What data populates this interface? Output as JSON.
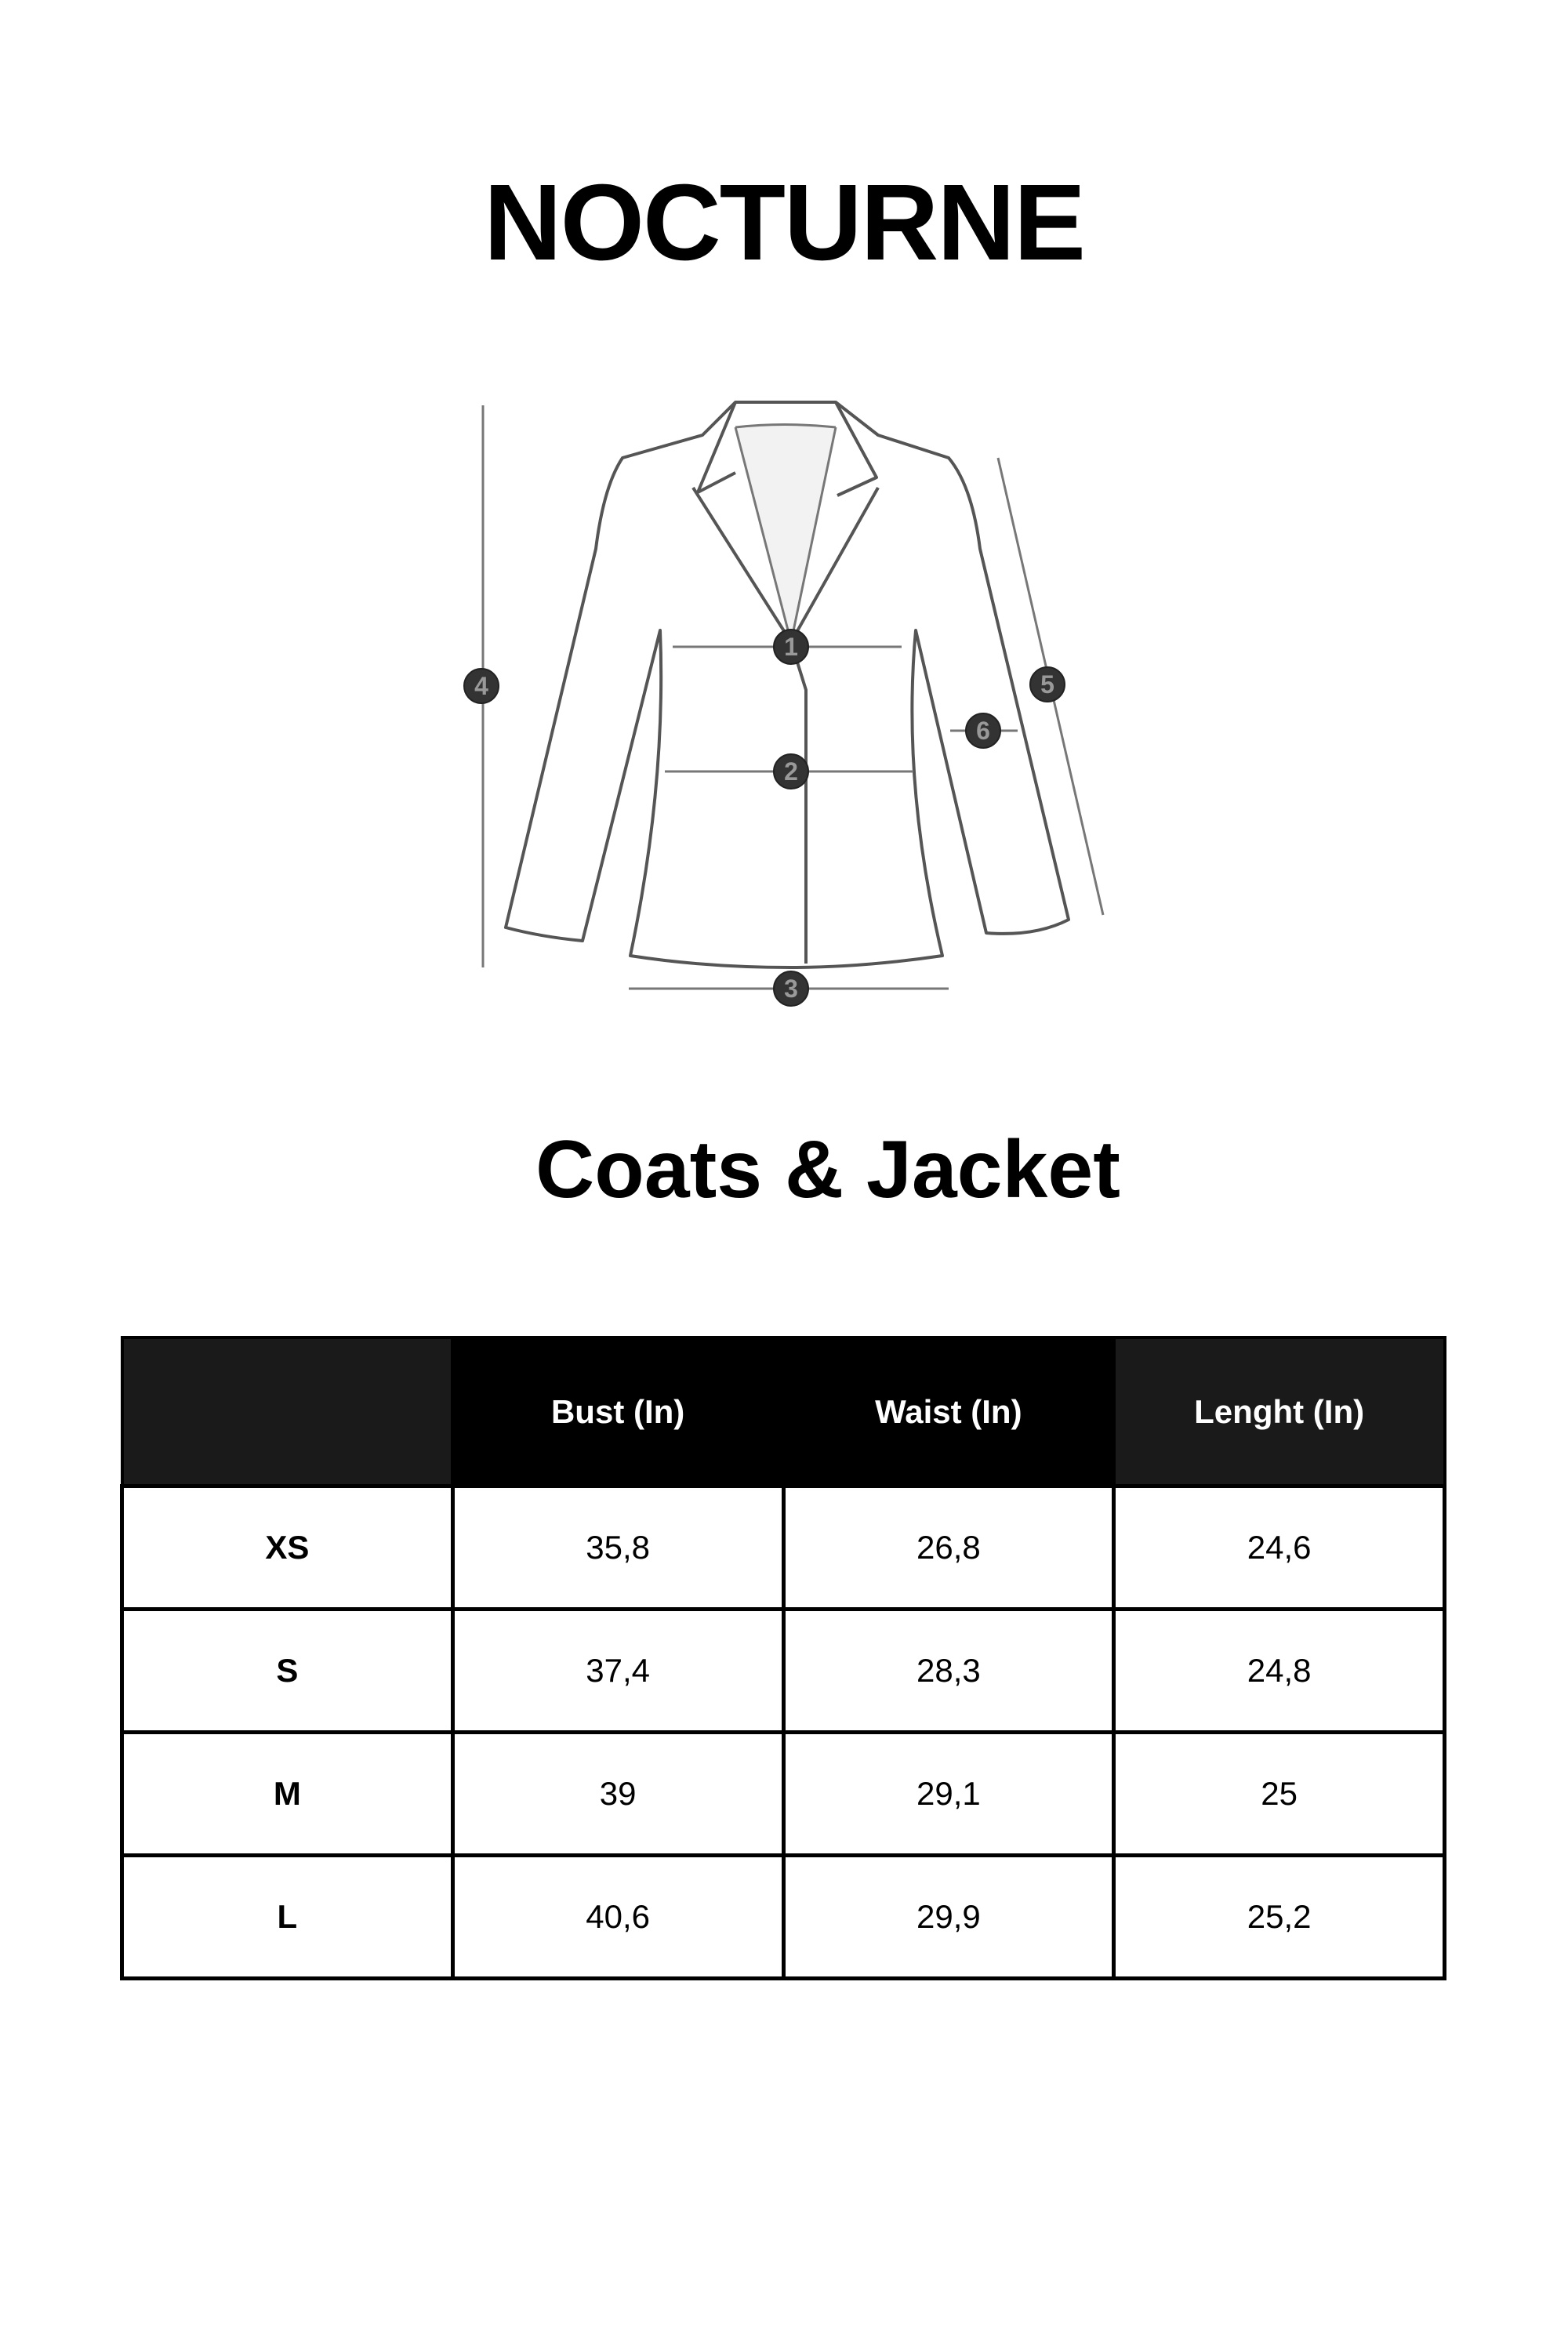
{
  "brand": "NOCTURNE",
  "diagram": {
    "markers": [
      "1",
      "2",
      "3",
      "4",
      "5",
      "6"
    ],
    "line_color": "#555555",
    "marker_color": "#333333"
  },
  "title": "Coats & Jacket",
  "table": {
    "headers": [
      "",
      "Bust (In)",
      "Waist (In)",
      "Lenght (In)"
    ],
    "rows": [
      {
        "size": "XS",
        "bust": "35,8",
        "waist": "26,8",
        "length": "24,6"
      },
      {
        "size": "S",
        "bust": "37,4",
        "waist": "28,3",
        "length": "24,8"
      },
      {
        "size": "M",
        "bust": "39",
        "waist": "29,1",
        "length": "25"
      },
      {
        "size": "L",
        "bust": "40,6",
        "waist": "29,9",
        "length": "25,2"
      }
    ]
  }
}
